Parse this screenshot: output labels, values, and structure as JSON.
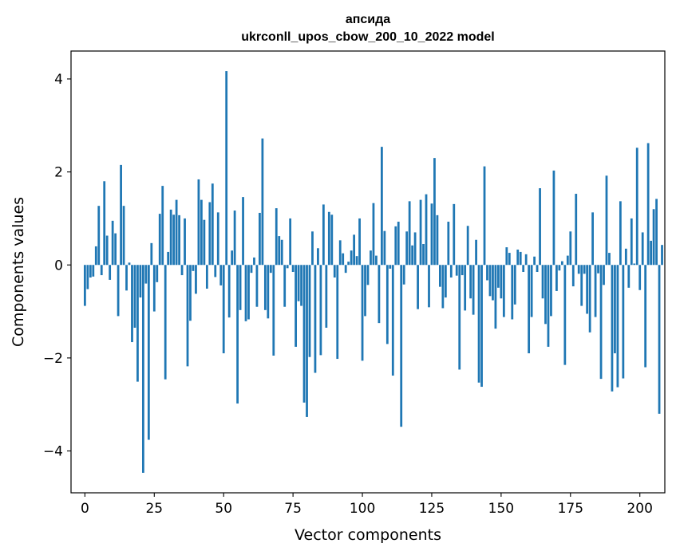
{
  "chart_data": {
    "type": "bar",
    "title": "апсида",
    "subtitle": "ukrconll_upos_cbow_200_10_2022 model",
    "xlabel": "Vector components",
    "ylabel": "Components values",
    "xlim": [
      -5,
      209
    ],
    "ylim": [
      -4.9,
      4.6
    ],
    "xticks": [
      0,
      25,
      50,
      75,
      100,
      125,
      150,
      175,
      200
    ],
    "yticks": [
      -4,
      -2,
      0,
      2,
      4
    ],
    "xtick_labels": [
      "0",
      "25",
      "50",
      "75",
      "100",
      "125",
      "150",
      "175",
      "200"
    ],
    "ytick_labels": [
      "−4",
      "−2",
      "0",
      "2",
      "4"
    ],
    "grid": false,
    "bar_color": "#1f77b4",
    "values": [
      -0.88,
      -0.52,
      -0.27,
      -0.25,
      0.4,
      1.27,
      -0.22,
      1.8,
      0.63,
      -0.32,
      0.95,
      0.68,
      -1.1,
      2.15,
      1.27,
      -0.55,
      0.05,
      -1.66,
      -1.35,
      -2.51,
      -0.7,
      -4.47,
      -0.4,
      -3.76,
      0.47,
      -1.0,
      -0.37,
      1.1,
      1.7,
      -2.46,
      0.28,
      1.19,
      1.08,
      1.4,
      1.07,
      -0.22,
      1.0,
      -2.18,
      -1.2,
      -0.13,
      -0.62,
      1.84,
      1.4,
      0.97,
      -0.51,
      1.35,
      1.75,
      -0.26,
      1.13,
      -0.44,
      -1.9,
      4.17,
      -1.13,
      0.31,
      1.17,
      -2.98,
      -0.97,
      1.46,
      -1.21,
      -1.17,
      -0.17,
      0.16,
      -0.9,
      1.12,
      2.72,
      -0.97,
      -1.15,
      -0.17,
      -1.95,
      1.22,
      0.62,
      0.54,
      -0.9,
      -0.07,
      1.0,
      -0.15,
      -1.76,
      -0.78,
      -0.88,
      -2.96,
      -3.27,
      -1.98,
      0.72,
      -2.32,
      0.36,
      -1.94,
      1.3,
      -1.35,
      1.14,
      1.08,
      -0.27,
      -2.02,
      0.53,
      0.25,
      -0.17,
      0.07,
      0.31,
      0.65,
      0.19,
      1.0,
      -2.06,
      -1.1,
      -0.43,
      0.31,
      1.33,
      0.2,
      -1.25,
      2.54,
      0.73,
      -1.7,
      -0.08,
      -2.38,
      0.83,
      0.93,
      -3.48,
      -0.42,
      0.72,
      1.37,
      0.42,
      0.7,
      -0.95,
      1.4,
      0.45,
      1.52,
      -0.91,
      1.32,
      2.3,
      1.07,
      -0.47,
      -0.93,
      -0.7,
      0.93,
      -0.27,
      1.31,
      -0.23,
      -2.25,
      -0.22,
      -0.98,
      0.84,
      -0.72,
      -1.07,
      0.54,
      -2.53,
      -2.62,
      2.12,
      -0.33,
      -0.67,
      -0.76,
      -1.37,
      -0.49,
      -0.72,
      -1.12,
      0.38,
      0.26,
      -1.17,
      -0.85,
      0.33,
      0.28,
      -0.15,
      0.23,
      -1.9,
      -1.12,
      0.18,
      -0.15,
      1.65,
      -0.72,
      -1.27,
      -1.76,
      -1.1,
      2.03,
      -0.56,
      -0.12,
      0.08,
      -2.15,
      0.2,
      0.72,
      -0.46,
      1.53,
      -0.19,
      -0.88,
      -0.19,
      -1.05,
      -1.45,
      1.13,
      -1.12,
      -0.18,
      -2.45,
      -0.43,
      1.92,
      0.26,
      -2.72,
      -1.9,
      -2.63,
      1.37,
      -2.44,
      0.35,
      -0.49,
      1.0,
      0.03,
      2.52,
      -0.54,
      0.7,
      -2.2,
      2.62,
      0.52,
      1.2,
      1.42,
      -3.2,
      0.43
    ]
  }
}
